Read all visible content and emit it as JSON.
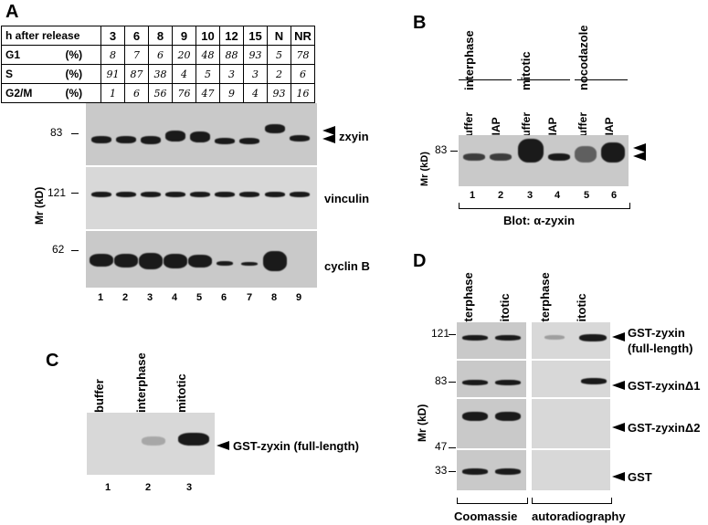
{
  "panelA": {
    "label": "A",
    "table": {
      "header_label": "h after  release",
      "timepoints": [
        "3",
        "6",
        "8",
        "9",
        "10",
        "12",
        "15",
        "N",
        "NR"
      ],
      "rows": [
        {
          "label": "G1",
          "unit": "(%)",
          "values": [
            "8",
            "7",
            "6",
            "20",
            "48",
            "88",
            "93",
            "5",
            "78"
          ]
        },
        {
          "label": "S",
          "unit": "(%)",
          "values": [
            "91",
            "87",
            "38",
            "4",
            "5",
            "3",
            "3",
            "2",
            "6"
          ]
        },
        {
          "label": "G2/M",
          "unit": "(%)",
          "values": [
            "1",
            "6",
            "56",
            "76",
            "47",
            "9",
            "4",
            "93",
            "16"
          ]
        }
      ]
    },
    "axis_label": "Mr (kD)",
    "markers": [
      "83",
      "121",
      "62"
    ],
    "blots": [
      "zxyin",
      "vinculin",
      "cyclin B"
    ],
    "lanes": [
      "1",
      "2",
      "3",
      "4",
      "5",
      "6",
      "7",
      "8",
      "9"
    ]
  },
  "panelB": {
    "label": "B",
    "groups": [
      "interphase",
      "mitotic",
      "nocodazole"
    ],
    "lane_treatments": [
      "buffer",
      "CIAP",
      "buffer",
      "CIAP",
      "buffer",
      "CIAP"
    ],
    "axis_label": "Mr (kD)",
    "marker": "83",
    "lanes": [
      "1",
      "2",
      "3",
      "4",
      "5",
      "6"
    ],
    "blot_label": "Blot: α-zyxin"
  },
  "panelC": {
    "label": "C",
    "lane_labels": [
      "buffer",
      "interphase",
      "mitotic"
    ],
    "band_label": "GST-zyxin (full-length)",
    "lanes": [
      "1",
      "2",
      "3"
    ]
  },
  "panelD": {
    "label": "D",
    "lane_labels": [
      "interphase",
      "mitotic",
      "interphase",
      "mitotic"
    ],
    "axis_label": "Mr (kD)",
    "markers": [
      "121",
      "83",
      "47",
      "33"
    ],
    "rows": [
      "GST-zyxin",
      "(full-length)",
      "GST-zyxinΔ1",
      "GST-zyxinΔ2",
      "GST"
    ],
    "footers": [
      "Coomassie",
      "autoradiography"
    ]
  }
}
